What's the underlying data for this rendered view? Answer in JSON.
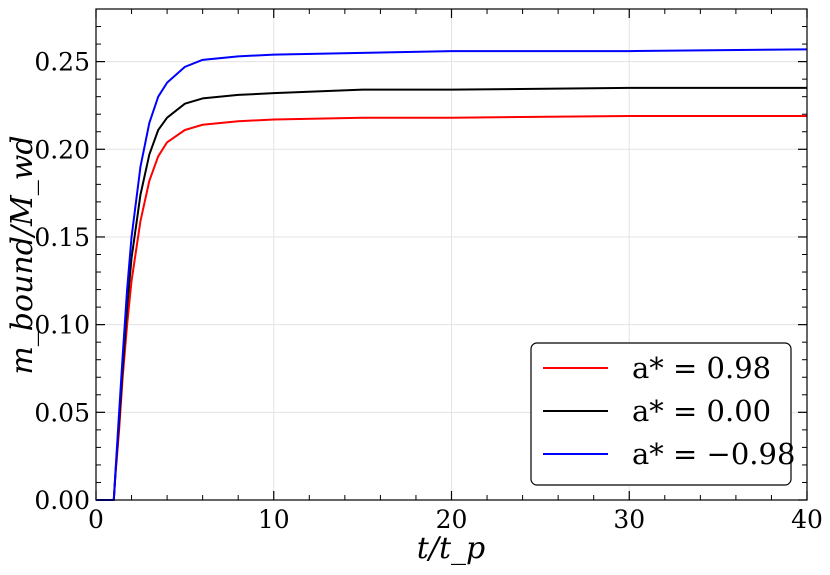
{
  "chart_data": {
    "type": "line",
    "xlabel": "t/t_p",
    "ylabel": "m_bound/M_wd",
    "xlim": [
      0,
      40
    ],
    "ylim": [
      0,
      0.28
    ],
    "x_ticks": [
      "0",
      "10",
      "20",
      "30",
      "40"
    ],
    "y_ticks": [
      "0.00",
      "0.05",
      "0.10",
      "0.15",
      "0.20",
      "0.25"
    ],
    "x_tick_values": [
      0,
      10,
      20,
      30,
      40
    ],
    "y_tick_values": [
      0,
      0.05,
      0.1,
      0.15,
      0.2,
      0.25
    ],
    "grid": true,
    "legend_position": "bottom-right",
    "series": [
      {
        "name": "a* = 0.98",
        "color": "#ff0000",
        "x": [
          0,
          1.0,
          1.1,
          1.3,
          1.5,
          1.75,
          2,
          2.5,
          3,
          3.5,
          4,
          5,
          6,
          8,
          10,
          15,
          20,
          30,
          40
        ],
        "y": [
          0,
          0,
          0.015,
          0.04,
          0.07,
          0.1,
          0.125,
          0.159,
          0.182,
          0.196,
          0.204,
          0.211,
          0.214,
          0.216,
          0.217,
          0.218,
          0.218,
          0.219,
          0.219
        ]
      },
      {
        "name": "a* = 0.00",
        "color": "#000000",
        "x": [
          0,
          1.0,
          1.1,
          1.3,
          1.5,
          1.75,
          2,
          2.5,
          3,
          3.5,
          4,
          5,
          6,
          8,
          10,
          15,
          20,
          30,
          40
        ],
        "y": [
          0,
          0,
          0.016,
          0.045,
          0.075,
          0.11,
          0.138,
          0.174,
          0.197,
          0.211,
          0.218,
          0.226,
          0.229,
          0.231,
          0.232,
          0.234,
          0.234,
          0.235,
          0.235
        ]
      },
      {
        "name": "a* = −0.98",
        "color": "#0000ff",
        "x": [
          0,
          1.0,
          1.1,
          1.3,
          1.5,
          1.75,
          2,
          2.5,
          3,
          3.5,
          4,
          5,
          6,
          8,
          10,
          15,
          20,
          30,
          40
        ],
        "y": [
          0,
          0,
          0.017,
          0.05,
          0.082,
          0.12,
          0.15,
          0.19,
          0.215,
          0.23,
          0.238,
          0.247,
          0.251,
          0.253,
          0.254,
          0.255,
          0.256,
          0.256,
          0.257
        ]
      }
    ]
  }
}
